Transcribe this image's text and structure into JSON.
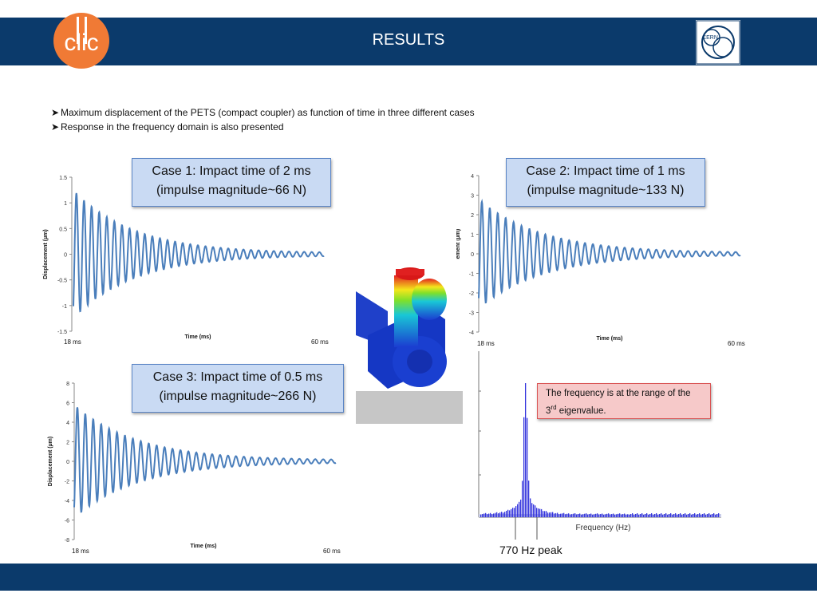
{
  "header": {
    "title": "RESULTS"
  },
  "logos": {
    "clic_text": "clic",
    "cern_text": "CERN"
  },
  "bullets": [
    "Maximum displacement of the PETS (compact coupler) as function of time in three different cases",
    "Response in the frequency domain is also presented"
  ],
  "cases": {
    "case1": {
      "line1": "Case 1: Impact time of 2 ms",
      "line2": "(impulse magnitude~66 N)"
    },
    "case2": {
      "line1": "Case 2: Impact time of 1 ms",
      "line2": "(impulse magnitude~133 N)"
    },
    "case3": {
      "line1": "Case 3: Impact time of 0.5 ms",
      "line2": "(impulse magnitude~266 N)"
    }
  },
  "freq_note": {
    "prefix": "The frequency is at the range of the 3",
    "sup": "rd",
    "suffix": " eigenvalue."
  },
  "colors": {
    "header": "#0b3a6b",
    "series": "#4a7ebb",
    "spectrum": "#3333dd"
  },
  "chart_data": [
    {
      "id": "case1",
      "type": "line",
      "ylabel": "Displacement  (µm)",
      "xlabel": "Time (ms)",
      "x_tick_labels": [
        "18 ms",
        "60 ms"
      ],
      "y_ticks": [
        "1.5",
        "1",
        "0.5",
        "0",
        "-0.5",
        "-1",
        "-1.5"
      ],
      "ylim": [
        -1.5,
        1.5
      ],
      "xlim": [
        18,
        60
      ],
      "series": [
        {
          "peak_amplitude": 1.25,
          "cycles": 33,
          "decay_rate": 0.055,
          "final_amplitude": 0.02
        }
      ]
    },
    {
      "id": "case2",
      "type": "line",
      "ylabel": "Displacement  (µm)",
      "xlabel": "Time (ms)",
      "x_tick_labels": [
        "18 ms",
        "60 ms"
      ],
      "y_ticks": [
        "4",
        "3",
        "2",
        "1",
        "0",
        "-1",
        "-2",
        "-3",
        "-4"
      ],
      "ylim": [
        -4,
        4
      ],
      "xlim": [
        18,
        60
      ],
      "series": [
        {
          "peak_amplitude": 2.8,
          "cycles": 33,
          "decay_rate": 0.055,
          "final_amplitude": 0.05
        }
      ]
    },
    {
      "id": "case3",
      "type": "line",
      "ylabel": "Displacement  (µm)",
      "xlabel": "Time (ms)",
      "x_tick_labels": [
        "18 ms",
        "60 ms"
      ],
      "y_ticks": [
        "8",
        "6",
        "4",
        "2",
        "0",
        "-2",
        "-4",
        "-6",
        "-8"
      ],
      "ylim": [
        -8,
        8
      ],
      "xlim": [
        18,
        60
      ],
      "series": [
        {
          "peak_amplitude": 5.8,
          "cycles": 33,
          "decay_rate": 0.055,
          "final_amplitude": 0.1
        }
      ]
    },
    {
      "id": "spectrum",
      "type": "bar",
      "xlabel": "Frequency (Hz)",
      "annotation": "770 Hz peak",
      "peak_frequency_hz": 770
    }
  ]
}
